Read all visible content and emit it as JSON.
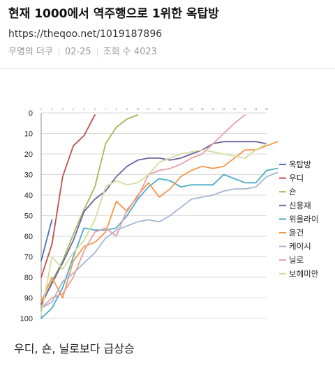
{
  "post": {
    "title": "현재 1000에서 역주행으로 1위한 옥탑방",
    "url": "https://theqoo.net/1019187896",
    "author": "무명의 더쿠",
    "date": "02-25",
    "views_label": "조회 수 4023",
    "caption": "우디, 숀, 닐로보다 급상승"
  },
  "chart_data": {
    "type": "line",
    "title": "",
    "xlabel": "",
    "ylabel": "",
    "ylim": [
      100,
      0
    ],
    "yticks": [
      0,
      10,
      20,
      30,
      40,
      50,
      60,
      70,
      80,
      90,
      100
    ],
    "xlim": [
      1,
      22
    ],
    "xticks": [
      "1",
      "2",
      "3",
      "4",
      "5",
      "6",
      "7",
      "8",
      "9",
      "10",
      "11",
      "12",
      "13",
      "14",
      "15",
      "16",
      "17",
      "18",
      "19",
      "20",
      "21",
      "22"
    ],
    "grid": "horizontal",
    "legend_position": "right",
    "series": [
      {
        "name": "옥탑방",
        "color": "#4a72b0",
        "points": [
          [
            1,
            72
          ],
          [
            2,
            52
          ]
        ]
      },
      {
        "name": "우디",
        "color": "#c0504d",
        "points": [
          [
            1,
            80
          ],
          [
            2,
            64
          ],
          [
            3,
            31
          ],
          [
            4,
            16
          ],
          [
            5,
            11
          ],
          [
            6,
            1
          ]
        ]
      },
      {
        "name": "숀",
        "color": "#9bbb59",
        "points": [
          [
            1,
            94
          ],
          [
            2,
            82
          ],
          [
            3,
            72
          ],
          [
            4,
            59
          ],
          [
            5,
            47
          ],
          [
            6,
            36
          ],
          [
            7,
            15
          ],
          [
            8,
            7
          ],
          [
            9,
            3
          ],
          [
            10,
            1
          ]
        ]
      },
      {
        "name": "신용재",
        "color": "#7060a0",
        "points": [
          [
            1,
            93
          ],
          [
            2,
            83
          ],
          [
            3,
            73
          ],
          [
            4,
            62
          ],
          [
            5,
            48
          ],
          [
            6,
            42
          ],
          [
            7,
            38
          ],
          [
            8,
            31
          ],
          [
            9,
            26
          ],
          [
            10,
            23
          ],
          [
            11,
            22
          ],
          [
            12,
            22
          ],
          [
            13,
            23
          ],
          [
            14,
            22
          ],
          [
            15,
            20
          ],
          [
            16,
            18
          ],
          [
            17,
            15
          ],
          [
            18,
            14
          ],
          [
            19,
            14
          ],
          [
            20,
            14
          ],
          [
            21,
            14
          ],
          [
            22,
            15
          ]
        ]
      },
      {
        "name": "위올라이",
        "color": "#4bacc6",
        "points": [
          [
            1,
            100
          ],
          [
            2,
            95
          ],
          [
            3,
            85
          ],
          [
            4,
            70
          ],
          [
            5,
            56
          ],
          [
            6,
            57
          ],
          [
            7,
            57
          ],
          [
            8,
            56
          ],
          [
            9,
            50
          ],
          [
            10,
            42
          ],
          [
            11,
            36
          ],
          [
            12,
            32
          ],
          [
            13,
            33
          ],
          [
            14,
            36
          ],
          [
            15,
            35
          ],
          [
            16,
            35
          ],
          [
            17,
            35
          ],
          [
            18,
            30
          ],
          [
            19,
            32
          ],
          [
            20,
            34
          ],
          [
            21,
            34
          ],
          [
            22,
            28
          ],
          [
            23,
            27
          ]
        ]
      },
      {
        "name": "윤건",
        "color": "#f79646",
        "points": [
          [
            1,
            92
          ],
          [
            2,
            80
          ],
          [
            3,
            90
          ],
          [
            4,
            72
          ],
          [
            5,
            65
          ],
          [
            6,
            63
          ],
          [
            7,
            58
          ],
          [
            8,
            43
          ],
          [
            9,
            48
          ],
          [
            10,
            40
          ],
          [
            11,
            34
          ],
          [
            12,
            41
          ],
          [
            13,
            37
          ],
          [
            14,
            31
          ],
          [
            15,
            28
          ],
          [
            16,
            26
          ],
          [
            17,
            27
          ],
          [
            18,
            26
          ],
          [
            19,
            22
          ],
          [
            20,
            18
          ],
          [
            21,
            18
          ],
          [
            22,
            16
          ],
          [
            23,
            14
          ]
        ]
      },
      {
        "name": "케이시",
        "color": "#a5b4d6",
        "points": [
          [
            1,
            95
          ],
          [
            2,
            92
          ],
          [
            3,
            82
          ],
          [
            4,
            78
          ],
          [
            5,
            73
          ],
          [
            6,
            68
          ],
          [
            7,
            61
          ],
          [
            8,
            57
          ],
          [
            9,
            55
          ],
          [
            10,
            53
          ],
          [
            11,
            52
          ],
          [
            12,
            53
          ],
          [
            13,
            50
          ],
          [
            14,
            46
          ],
          [
            15,
            42
          ],
          [
            16,
            41
          ],
          [
            17,
            40
          ],
          [
            18,
            38
          ],
          [
            19,
            37
          ],
          [
            20,
            37
          ],
          [
            21,
            36
          ],
          [
            22,
            31
          ],
          [
            23,
            29
          ]
        ]
      },
      {
        "name": "닐로",
        "color": "#e6a0a6",
        "points": [
          [
            1,
            95
          ],
          [
            2,
            90
          ],
          [
            3,
            88
          ],
          [
            4,
            80
          ],
          [
            5,
            67
          ],
          [
            6,
            58
          ],
          [
            7,
            56
          ],
          [
            8,
            60
          ],
          [
            9,
            47
          ],
          [
            10,
            41
          ],
          [
            11,
            30
          ],
          [
            12,
            28
          ],
          [
            13,
            27
          ],
          [
            14,
            25
          ],
          [
            15,
            22
          ],
          [
            16,
            20
          ],
          [
            17,
            15
          ],
          [
            18,
            10
          ],
          [
            19,
            5
          ],
          [
            20,
            1
          ]
        ]
      },
      {
        "name": "보헤미안",
        "color": "#d5dca0",
        "points": [
          [
            1,
            98
          ],
          [
            2,
            70
          ],
          [
            3,
            76
          ],
          [
            4,
            68
          ],
          [
            5,
            62
          ],
          [
            6,
            52
          ],
          [
            7,
            36
          ],
          [
            8,
            33
          ],
          [
            9,
            35
          ],
          [
            10,
            34
          ],
          [
            11,
            30
          ],
          [
            12,
            24
          ],
          [
            13,
            22
          ],
          [
            14,
            20
          ],
          [
            15,
            19
          ],
          [
            16,
            18
          ],
          [
            17,
            19
          ],
          [
            18,
            20
          ],
          [
            19,
            21
          ],
          [
            20,
            22
          ],
          [
            21,
            18
          ],
          [
            22,
            15
          ]
        ]
      }
    ]
  }
}
